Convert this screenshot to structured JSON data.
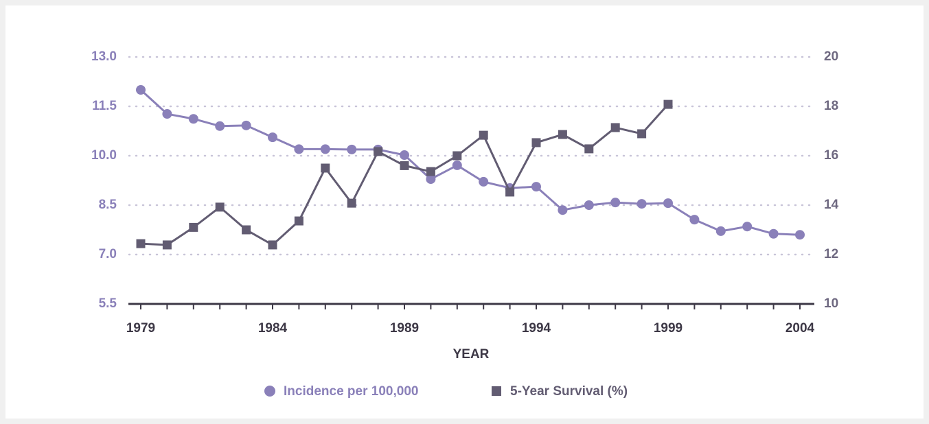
{
  "chart_data": {
    "type": "line",
    "x": [
      1979,
      1980,
      1981,
      1982,
      1983,
      1984,
      1985,
      1986,
      1987,
      1988,
      1989,
      1990,
      1991,
      1992,
      1993,
      1994,
      1995,
      1996,
      1997,
      1998,
      1999,
      2000,
      2001,
      2002,
      2003,
      2004
    ],
    "xlim": [
      1979,
      2004
    ],
    "xticks": [
      1979,
      1984,
      1989,
      1994,
      1999,
      2004
    ],
    "xlabel": "YEAR",
    "ylim": [
      5.5,
      13
    ],
    "yticks": [
      5.5,
      {
        "value": 7,
        "label": "7.0"
      },
      8.5,
      {
        "value": 10,
        "label": "10.0"
      },
      11.5,
      {
        "value": 13,
        "label": "13.0"
      }
    ],
    "y2lim": [
      10,
      20
    ],
    "y2ticks": [
      10,
      12,
      14,
      16,
      18,
      20
    ],
    "grid": true,
    "legend": "bottom",
    "series": [
      {
        "name": "Incidence per 100,000",
        "color": "#8a80b9",
        "marker": "circle",
        "values": [
          12.0,
          11.27,
          11.12,
          10.9,
          10.92,
          10.56,
          10.2,
          10.2,
          10.19,
          10.19,
          10.02,
          9.29,
          9.71,
          9.21,
          9.02,
          9.06,
          8.35,
          8.5,
          8.58,
          8.54,
          8.56,
          8.06,
          7.71,
          7.85,
          7.63,
          7.6
        ]
      },
      {
        "name": "5-Year Survival (%)",
        "color": "#625c72",
        "marker": "square",
        "axis": "y2",
        "values": [
          12.44,
          12.39,
          13.1,
          13.92,
          13.0,
          12.39,
          13.36,
          15.5,
          14.08,
          16.17,
          15.6,
          15.36,
          16.0,
          16.83,
          14.53,
          16.53,
          16.86,
          16.28,
          17.14,
          16.89,
          18.08,
          null,
          null,
          null,
          null,
          null
        ]
      }
    ]
  }
}
